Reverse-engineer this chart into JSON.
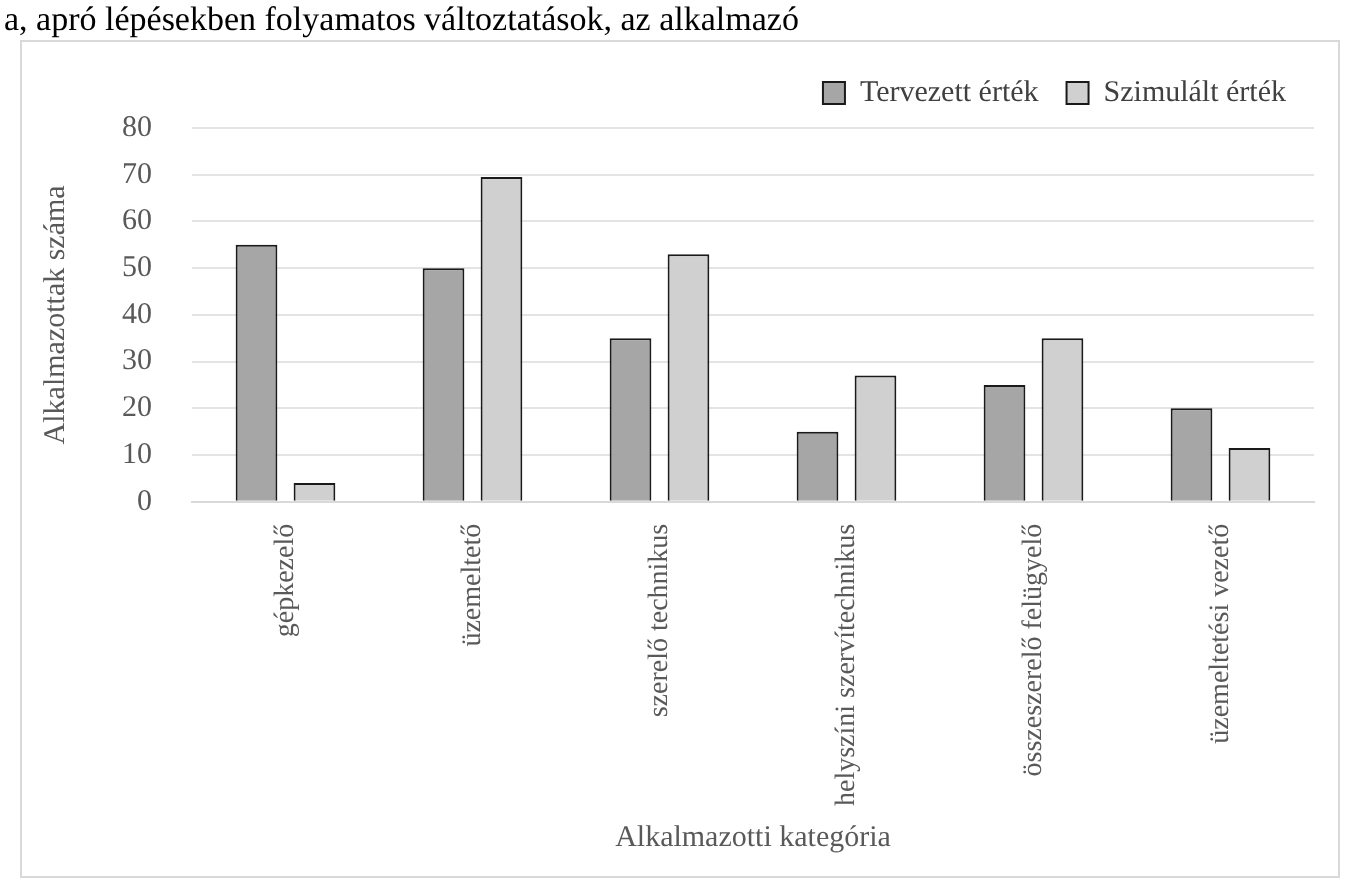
{
  "chart_data": {
    "type": "bar",
    "annotations": [
      "a, apró lépésekben folyamatos változtatások, az alkalmazó"
    ],
    "xlabel": "Alkalmazotti kategória",
    "ylabel": "Alkalmazottak száma",
    "categories": [
      "gépkezelő",
      "üzemeltető",
      "szerelő technikus",
      "helyszíni szervítechnikus",
      "összeszerelő felügyelő",
      "üzemeltetési vezető"
    ],
    "series": [
      {
        "name": "Tervezett érték",
        "color": "#a6a6a6",
        "values": [
          55,
          50,
          35,
          15,
          25,
          20
        ]
      },
      {
        "name": "Szimulált érték",
        "color": "#d0d0d0",
        "values": [
          4,
          69.5,
          53,
          27,
          35,
          11.5
        ]
      }
    ],
    "ylim": [
      0,
      80
    ],
    "yticks": [
      0,
      10,
      20,
      30,
      40,
      50,
      60,
      70,
      80
    ],
    "grid": "y",
    "legend": "top right"
  }
}
